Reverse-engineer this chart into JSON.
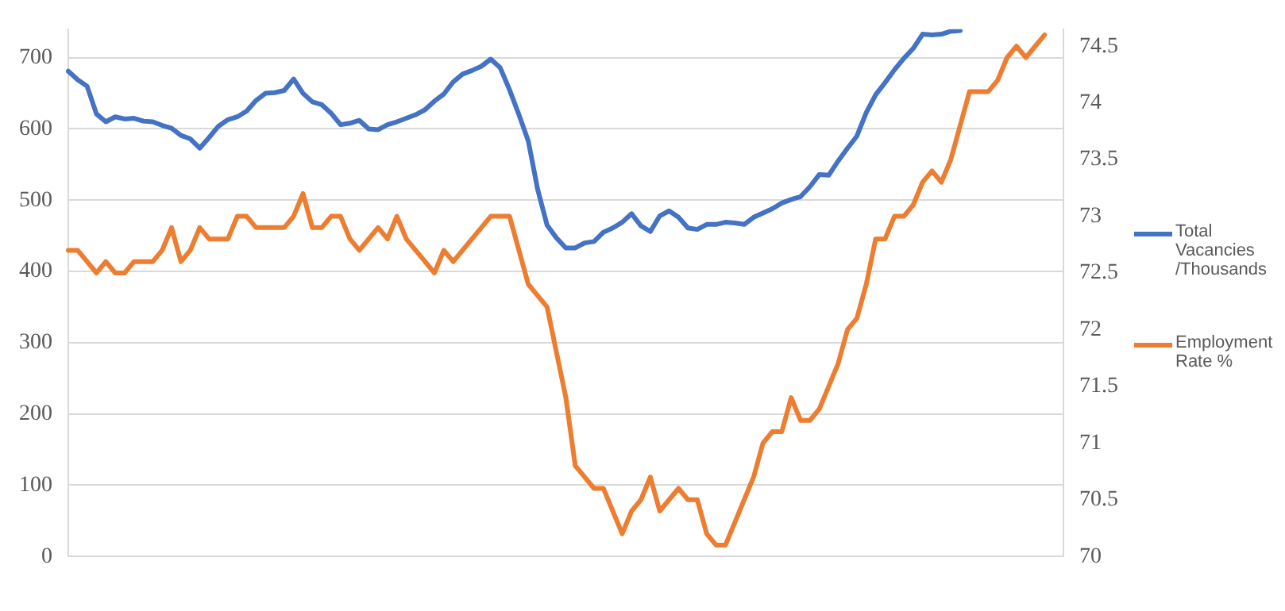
{
  "chart_data": {
    "type": "line",
    "categories": [
      null,
      null,
      null,
      null,
      null,
      null,
      null,
      null,
      null,
      null,
      null,
      null,
      null,
      null,
      null,
      null,
      null,
      null,
      null,
      null,
      null,
      null,
      null,
      null,
      null,
      null,
      null,
      null,
      null,
      null,
      null,
      null,
      null,
      null,
      null,
      null,
      null,
      null,
      null,
      null,
      null,
      null,
      null,
      null,
      null,
      null,
      null,
      null,
      null,
      null,
      null,
      null,
      null,
      null,
      null,
      null,
      null,
      null,
      null,
      null,
      null,
      null,
      null,
      null,
      null,
      null,
      null,
      null,
      null,
      null,
      null,
      null,
      null,
      null,
      null,
      null,
      null,
      null,
      null,
      null,
      null,
      null,
      null,
      null,
      null,
      null,
      null,
      null,
      null,
      null,
      null,
      null,
      null,
      null,
      null,
      null,
      null,
      null,
      null,
      null,
      null,
      null,
      null,
      null,
      null,
      null,
      null
    ],
    "series": [
      {
        "name": "Total Vacancies /Thousands",
        "color": "#4472c4",
        "values": [
          681,
          669,
          660,
          621,
          610,
          617,
          614,
          615,
          611,
          610,
          605,
          601,
          591,
          586,
          573,
          588,
          604,
          613,
          617,
          625,
          640,
          650,
          651,
          654,
          670,
          650,
          638,
          634,
          622,
          606,
          608,
          612,
          600,
          599,
          606,
          610,
          615,
          620,
          627,
          639,
          649,
          666,
          677,
          682,
          688,
          698,
          686,
          655,
          620,
          583,
          515,
          465,
          447,
          433,
          433,
          440,
          442,
          455,
          461,
          469,
          481,
          464,
          456,
          478,
          485,
          476,
          461,
          459,
          466,
          466,
          469,
          468,
          466,
          476,
          482,
          488,
          496,
          501,
          505,
          519,
          536,
          535,
          555,
          573,
          590,
          623,
          648,
          665,
          683,
          699,
          713,
          733,
          732,
          733,
          737,
          738,
          null,
          null,
          null,
          null,
          null,
          null,
          null,
          null,
          null,
          null,
          null
        ]
      },
      {
        "name": "Employment Rate %",
        "color": "#ed7d31",
        "axis": "y2",
        "values": [
          72.7,
          72.7,
          72.6,
          72.5,
          72.6,
          72.5,
          72.5,
          72.6,
          72.6,
          72.6,
          72.7,
          72.9,
          72.6,
          72.7,
          72.9,
          72.8,
          72.8,
          72.8,
          73.0,
          73.0,
          72.9,
          72.9,
          72.9,
          72.9,
          73.0,
          73.2,
          72.9,
          72.9,
          73.0,
          73.0,
          72.8,
          72.7,
          72.8,
          72.9,
          72.8,
          73.0,
          72.8,
          72.7,
          72.6,
          72.5,
          72.7,
          72.6,
          72.7,
          72.8,
          72.9,
          73.0,
          73.0,
          73.0,
          72.7,
          72.4,
          72.3,
          72.2,
          71.8,
          71.4,
          70.8,
          70.7,
          70.6,
          70.6,
          70.4,
          70.2,
          70.4,
          70.5,
          70.7,
          70.4,
          70.5,
          70.6,
          70.5,
          70.5,
          70.2,
          70.1,
          70.1,
          70.3,
          70.5,
          70.7,
          71.0,
          71.1,
          71.1,
          71.4,
          71.2,
          71.2,
          71.3,
          71.5,
          71.7,
          72.0,
          72.1,
          72.4,
          72.8,
          72.8,
          73.0,
          73.0,
          73.1,
          73.3,
          73.4,
          73.3,
          73.5,
          73.8,
          74.1,
          74.1,
          74.1,
          74.2,
          74.4,
          74.5,
          74.4,
          74.5,
          74.6,
          null,
          null
        ]
      }
    ],
    "ylim": [
      0,
      740
    ],
    "yticks": [
      0,
      100,
      200,
      300,
      400,
      500,
      600,
      700
    ],
    "y2lim": [
      70,
      74.65
    ],
    "y2ticks": [
      70,
      70.5,
      71,
      71.5,
      72,
      72.5,
      73,
      73.5,
      74,
      74.5
    ],
    "grid": "y",
    "legend": "right",
    "marker": "none",
    "line_style": "solid"
  }
}
